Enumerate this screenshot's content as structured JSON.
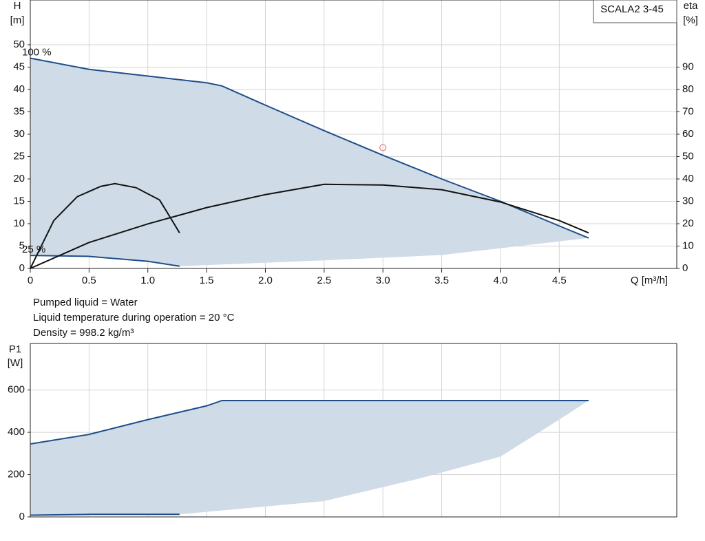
{
  "chart_data": [
    {
      "type": "line",
      "legend_label": "SCALA2 3-45",
      "y_label_name": "H",
      "y_label_unit": "[m]",
      "y2_label_name": "eta",
      "y2_label_unit": "[%]",
      "x_label": "Q [m³/h]",
      "xlim": [
        0,
        5.5
      ],
      "xticks": [
        0,
        0.5,
        {
          "value": 1,
          "label": "1.0"
        },
        1.5,
        {
          "value": 2,
          "label": "2.0"
        },
        2.5,
        {
          "value": 3,
          "label": "3.0"
        },
        3.5,
        {
          "value": 4,
          "label": "4.0"
        },
        4.5
      ],
      "ylim": [
        0,
        60
      ],
      "yticks": [
        0,
        5,
        10,
        15,
        20,
        25,
        30,
        35,
        40,
        45,
        50
      ],
      "y2lim": [
        0,
        120
      ],
      "y2ticks": [
        0,
        10,
        20,
        30,
        40,
        50,
        60,
        70,
        80,
        90
      ],
      "grid": true,
      "fill_color": "#cfdbe6",
      "series": [
        {
          "name": "100 %",
          "color": "#1f4e89",
          "x": [
            0,
            0.5,
            1.0,
            1.5,
            1.63,
            2.0,
            2.5,
            3.0,
            3.5,
            4.0,
            4.5,
            4.75
          ],
          "values": [
            47,
            44.5,
            43,
            41.5,
            40.8,
            36.5,
            30.8,
            25.3,
            20,
            15,
            9.5,
            6.8
          ]
        },
        {
          "name": "25 %",
          "color": "#1f4e89",
          "x": [
            0,
            0.5,
            1.0,
            1.27
          ],
          "values": [
            2.9,
            2.7,
            1.6,
            0.5
          ]
        },
        {
          "color": "#111111",
          "axis": "y2",
          "x": [
            0,
            0.2,
            0.4,
            0.6,
            0.72,
            0.9,
            1.1,
            1.2,
            1.27
          ],
          "values": [
            0,
            21.4,
            32.1,
            36.7,
            37.9,
            36.1,
            30.6,
            22,
            15.9
          ]
        },
        {
          "color": "#111111",
          "axis": "y2",
          "x": [
            0,
            0.5,
            1.0,
            1.5,
            2.0,
            2.5,
            3.0,
            3.5,
            4.0,
            4.5,
            4.75
          ],
          "values": [
            0,
            11.6,
            19.9,
            27.2,
            33,
            37.6,
            37.3,
            35.2,
            29.7,
            21.4,
            15.9
          ]
        }
      ],
      "area_lower": {
        "x": [
          1.27,
          2.5,
          3.5,
          4.75
        ],
        "values": [
          0.5,
          1.8,
          3,
          6.8
        ]
      },
      "duty_point": {
        "x": 3.0,
        "y": 27,
        "color": "#e06060"
      }
    },
    {
      "type": "line",
      "y_label_name": "P1",
      "y_label_unit": "[W]",
      "xlim": [
        0,
        5.5
      ],
      "ylim": [
        0,
        820
      ],
      "yticks": [
        0,
        200,
        400,
        600
      ],
      "grid": true,
      "fill_color": "#cfdbe6",
      "series": [
        {
          "color": "#1f4e89",
          "x": [
            0,
            0.5,
            1.0,
            1.5,
            1.63,
            4.75
          ],
          "values": [
            345,
            390,
            460,
            525,
            550,
            550
          ]
        },
        {
          "color": "#1f4e89",
          "x": [
            0,
            0.5,
            1.27
          ],
          "values": [
            8,
            12,
            12
          ]
        }
      ],
      "area_lower": {
        "x": [
          1.27,
          2.5,
          3.3,
          4.0,
          4.5,
          4.75
        ],
        "values": [
          12,
          75,
          180,
          285,
          460,
          550
        ]
      }
    }
  ],
  "notes": [
    "Pumped liquid = Water",
    "Liquid temperature during operation = 20 °C",
    "Density = 998.2 kg/m³"
  ]
}
